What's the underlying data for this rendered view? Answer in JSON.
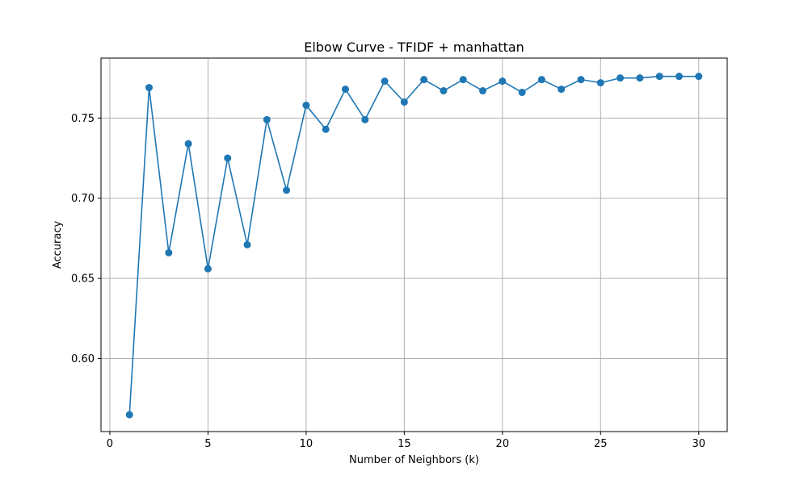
{
  "chart_data": {
    "type": "line",
    "title": "Elbow Curve - TFIDF + manhattan",
    "xlabel": "Number of Neighbors (k)",
    "ylabel": "Accuracy",
    "xlim": [
      -0.45,
      31.45
    ],
    "ylim": [
      0.5545,
      0.7874
    ],
    "xticks": [
      0,
      5,
      10,
      15,
      20,
      25,
      30
    ],
    "xtick_labels": [
      "0",
      "5",
      "10",
      "15",
      "20",
      "25",
      "30"
    ],
    "yticks": [
      0.6,
      0.65,
      0.7,
      0.75
    ],
    "ytick_labels": [
      "0.60",
      "0.65",
      "0.70",
      "0.75"
    ],
    "grid": true,
    "marker": "circle",
    "color": "#1f77b4",
    "series": [
      {
        "x": [
          1,
          2,
          3,
          4,
          5,
          6,
          7,
          8,
          9,
          10,
          11,
          12,
          13,
          14,
          15,
          16,
          17,
          18,
          19,
          20,
          21,
          22,
          23,
          24,
          25,
          26,
          27,
          28,
          29,
          30
        ],
        "values": [
          0.565,
          0.769,
          0.666,
          0.734,
          0.656,
          0.725,
          0.671,
          0.749,
          0.705,
          0.758,
          0.743,
          0.768,
          0.749,
          0.773,
          0.76,
          0.774,
          0.767,
          0.774,
          0.767,
          0.773,
          0.766,
          0.774,
          0.768,
          0.774,
          0.772,
          0.775,
          0.775,
          0.776,
          0.776,
          0.776
        ]
      }
    ]
  }
}
